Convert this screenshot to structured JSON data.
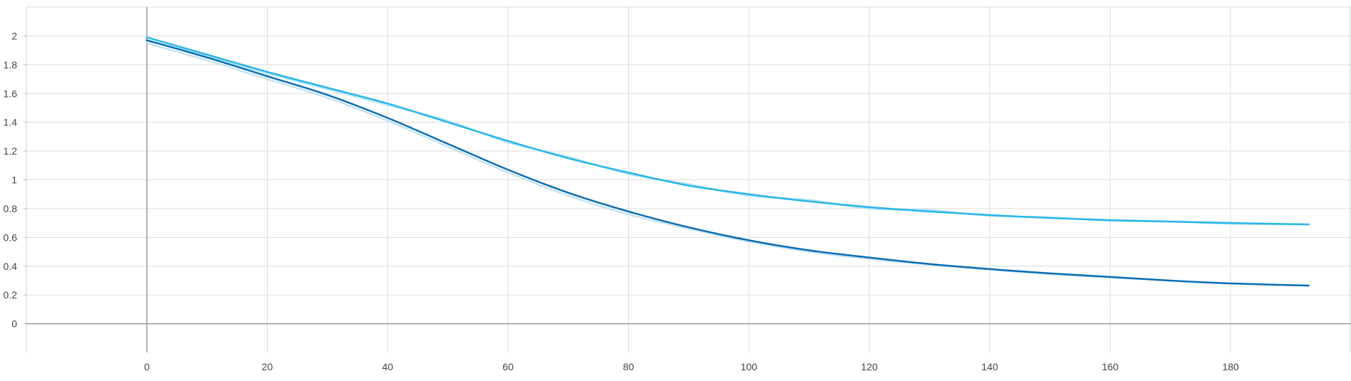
{
  "chart_data": {
    "type": "line",
    "xlim": [
      -20,
      200
    ],
    "ylim": [
      -0.2,
      2.2
    ],
    "x_ticks": [
      {
        "value": 0,
        "label": "0"
      },
      {
        "value": 20,
        "label": "20"
      },
      {
        "value": 40,
        "label": "40"
      },
      {
        "value": 60,
        "label": "60"
      },
      {
        "value": 80,
        "label": "80"
      },
      {
        "value": 100,
        "label": "100"
      },
      {
        "value": 120,
        "label": "120"
      },
      {
        "value": 140,
        "label": "140"
      },
      {
        "value": 160,
        "label": "160"
      },
      {
        "value": 180,
        "label": "180"
      }
    ],
    "y_ticks": [
      {
        "value": 2,
        "label": "2"
      },
      {
        "value": 1.8,
        "label": "1.8"
      },
      {
        "value": 1.6,
        "label": "1.6"
      },
      {
        "value": 1.4,
        "label": "1.4"
      },
      {
        "value": 1.2,
        "label": "1.2"
      },
      {
        "value": 1,
        "label": "1"
      },
      {
        "value": 0.8,
        "label": "0.8"
      },
      {
        "value": 0.6,
        "label": "0.6"
      },
      {
        "value": 0.4,
        "label": "0.4"
      },
      {
        "value": 0.2,
        "label": "0.2"
      },
      {
        "value": 0,
        "label": "0"
      }
    ],
    "grid": true,
    "series": [
      {
        "color": "#29b6e6",
        "raw_color": "#b3e5f5",
        "x": [
          0,
          10,
          20,
          30,
          40,
          50,
          60,
          70,
          80,
          90,
          100,
          110,
          120,
          130,
          140,
          150,
          160,
          170,
          180,
          193
        ],
        "values": [
          1.99,
          1.87,
          1.75,
          1.64,
          1.53,
          1.4,
          1.27,
          1.15,
          1.05,
          0.96,
          0.9,
          0.85,
          0.81,
          0.78,
          0.755,
          0.735,
          0.72,
          0.71,
          0.7,
          0.69
        ],
        "raw_values": [
          1.97,
          1.86,
          1.74,
          1.63,
          1.52,
          1.41,
          1.26,
          1.16,
          1.04,
          0.97,
          0.89,
          0.86,
          0.8,
          0.79,
          0.75,
          0.74,
          0.715,
          0.71,
          0.695,
          0.69
        ]
      },
      {
        "color": "#0a6eb4",
        "raw_color": "#c7e2f2",
        "x": [
          0,
          10,
          20,
          30,
          40,
          50,
          60,
          70,
          80,
          90,
          100,
          110,
          120,
          130,
          140,
          150,
          160,
          170,
          180,
          193
        ],
        "values": [
          1.97,
          1.85,
          1.72,
          1.59,
          1.43,
          1.25,
          1.07,
          0.91,
          0.78,
          0.67,
          0.58,
          0.51,
          0.46,
          0.415,
          0.38,
          0.35,
          0.325,
          0.3,
          0.28,
          0.265
        ],
        "raw_values": [
          1.95,
          1.83,
          1.7,
          1.57,
          1.41,
          1.23,
          1.05,
          0.89,
          0.76,
          0.66,
          0.57,
          0.5,
          0.45,
          0.41,
          0.375,
          0.345,
          0.32,
          0.3,
          0.28,
          0.265
        ]
      }
    ]
  }
}
